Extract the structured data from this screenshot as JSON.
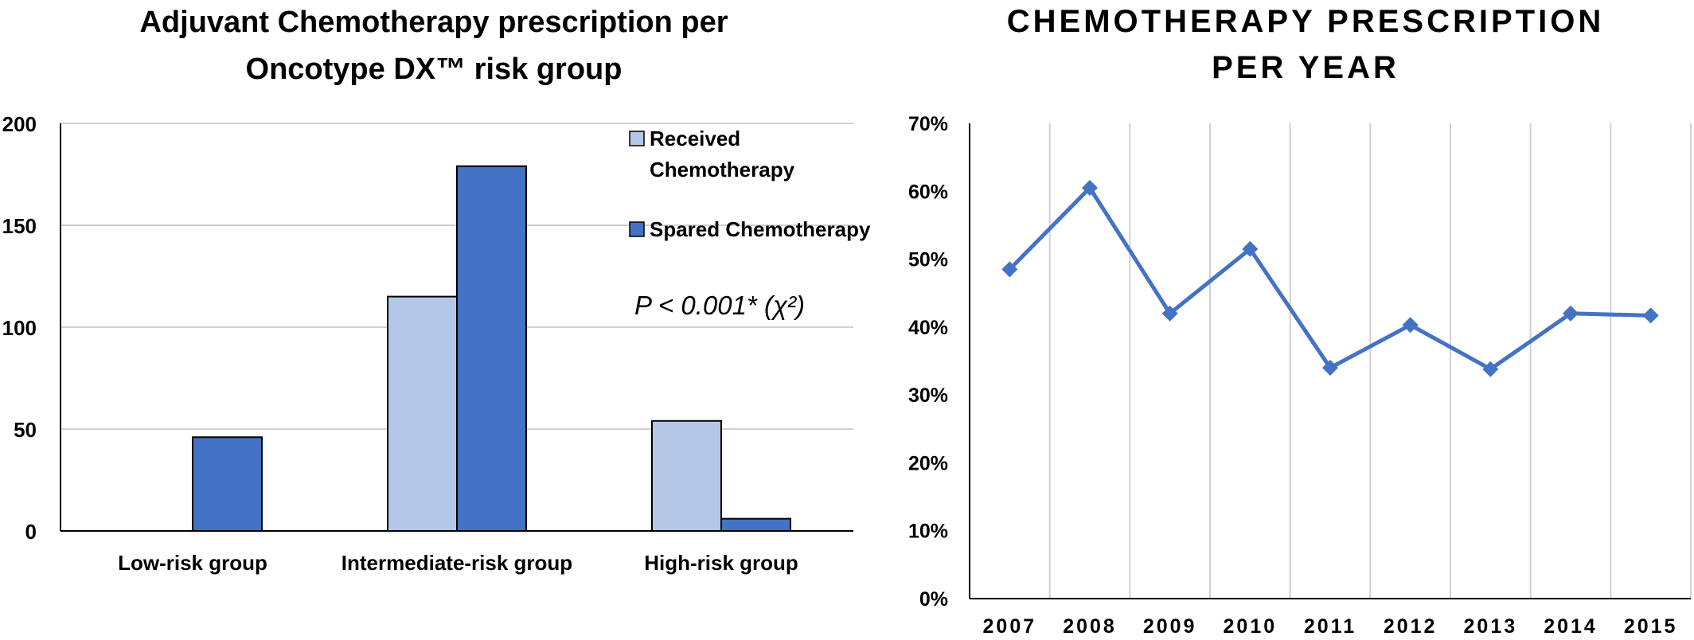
{
  "chart_data": [
    {
      "type": "bar",
      "title_lines": [
        "Adjuvant Chemotherapy prescription per",
        "Oncotype DX™ risk group"
      ],
      "categories": [
        "Low-risk group",
        "Intermediate-risk group",
        "High-risk group"
      ],
      "series": [
        {
          "name": "Received Chemotherapy",
          "legend_lines": [
            "Received",
            "Chemotherapy"
          ],
          "color": "#b4c7e7",
          "values": [
            0,
            115,
            54
          ]
        },
        {
          "name": "Spared Chemotherapy",
          "legend_lines": [
            "Spared Chemotherapy"
          ],
          "color": "#4472c4",
          "values": [
            46,
            179,
            6
          ]
        }
      ],
      "y_ticks": [
        "0",
        "50",
        "100",
        "150",
        "200"
      ],
      "ylim": [
        0,
        200
      ],
      "grid": true,
      "legend_position": "top-right",
      "annotation": "P < 0.001* (χ²)"
    },
    {
      "type": "line",
      "title_lines": [
        "CHEMOTHERAPY PRESCRIPTION",
        "PER YEAR"
      ],
      "x": [
        "2007",
        "2008",
        "2009",
        "2010",
        "2011",
        "2012",
        "2013",
        "2014",
        "2015"
      ],
      "series": [
        {
          "color": "#4472c4",
          "values": [
            48.5,
            60.5,
            42,
            51.5,
            34,
            40.3,
            33.8,
            42,
            41.7
          ]
        }
      ],
      "y_ticks": [
        "0%",
        "10%",
        "20%",
        "30%",
        "40%",
        "50%",
        "60%",
        "70%"
      ],
      "ylim": [
        0,
        70
      ],
      "grid": "vertical"
    }
  ]
}
